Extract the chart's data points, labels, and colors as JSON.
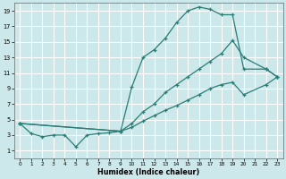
{
  "xlabel": "Humidex (Indice chaleur)",
  "bg_color": "#cce8eb",
  "grid_color": "#ffffff",
  "line_color": "#2a7d76",
  "xlim": [
    -0.5,
    23.5
  ],
  "ylim": [
    0.0,
    20.0
  ],
  "xticks": [
    0,
    1,
    2,
    3,
    4,
    5,
    6,
    7,
    8,
    9,
    10,
    11,
    12,
    13,
    14,
    15,
    16,
    17,
    18,
    19,
    20,
    21,
    22,
    23
  ],
  "yticks": [
    1,
    3,
    5,
    7,
    9,
    11,
    13,
    15,
    17,
    19
  ],
  "series1_x": [
    0,
    1,
    2,
    3,
    4,
    5,
    6,
    7,
    8,
    9,
    10,
    11,
    12,
    13,
    14,
    15,
    16,
    17,
    18,
    19,
    20,
    22,
    23
  ],
  "series1_y": [
    4.5,
    3.2,
    2.8,
    3.0,
    3.0,
    1.5,
    3.0,
    3.2,
    3.3,
    3.5,
    9.2,
    13.0,
    14.0,
    15.5,
    17.5,
    19.0,
    19.5,
    19.2,
    18.5,
    18.5,
    11.5,
    11.5,
    10.5
  ],
  "series2_x": [
    0,
    9,
    10,
    11,
    12,
    13,
    14,
    15,
    16,
    17,
    18,
    19,
    20,
    22,
    23
  ],
  "series2_y": [
    4.5,
    3.5,
    4.5,
    6.0,
    7.0,
    8.5,
    9.5,
    10.5,
    11.5,
    12.5,
    13.5,
    15.2,
    13.0,
    11.5,
    10.5
  ],
  "series3_x": [
    0,
    9,
    10,
    11,
    12,
    13,
    14,
    15,
    16,
    17,
    18,
    19,
    20,
    22,
    23
  ],
  "series3_y": [
    4.5,
    3.5,
    4.0,
    4.8,
    5.5,
    6.2,
    6.8,
    7.5,
    8.2,
    9.0,
    9.5,
    9.8,
    8.2,
    9.5,
    10.5
  ]
}
